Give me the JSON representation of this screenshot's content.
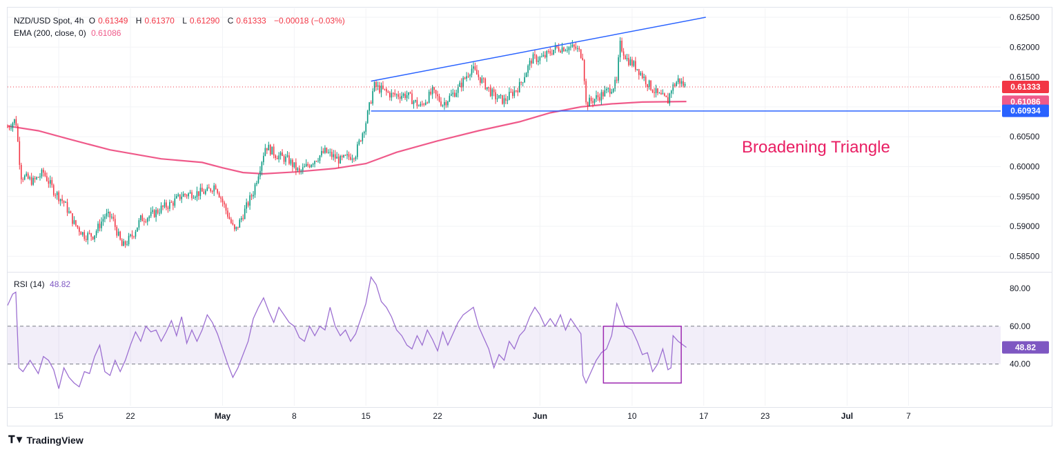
{
  "legend": {
    "symbol": "NZD/USD Spot, 4h",
    "o_label": "O",
    "open": "0.61349",
    "h_label": "H",
    "high": "0.61370",
    "l_label": "L",
    "low": "0.61290",
    "c_label": "C",
    "close": "0.61333",
    "change": "−0.00018 (−0.03%)",
    "ema_label": "EMA (200, close, 0)",
    "ema_value": "0.61086",
    "rsi_label": "RSI (14)",
    "rsi_value": "48.82"
  },
  "annotation": "Broadening Triangle",
  "footer": {
    "logo_text": "TradingView"
  },
  "colors": {
    "up": "#089981",
    "down": "#f23645",
    "ema": "#ef5a8a",
    "trendline": "#2962ff",
    "rsi": "#9c6fd1",
    "rsi_box": "#9c27b0",
    "annotation": "#e91e63"
  },
  "chart_data": [
    {
      "type": "candlestick",
      "title": "NZD/USD Spot, 4h",
      "ylim": [
        0.5825,
        0.6265
      ],
      "y_ticks": [
        "0.62500",
        "0.62000",
        "0.61500",
        "0.61000",
        "0.60500",
        "0.60000",
        "0.59500",
        "0.59000",
        "0.58500"
      ],
      "x_ticks": [
        "15",
        "22",
        "May",
        "8",
        "15",
        "22",
        "Jun",
        "10",
        "17",
        "23",
        "Jul",
        "7"
      ],
      "x_tick_days": [
        15,
        22,
        31,
        38,
        45,
        52,
        62,
        71,
        78,
        84,
        92,
        98
      ],
      "x_range_days": [
        10.0,
        107.0
      ],
      "price_labels": [
        {
          "value": 0.61333,
          "text": "0.61333",
          "color": "#f23645"
        },
        {
          "value": 0.61086,
          "text": "0.61086",
          "color": "#ef5a8a"
        },
        {
          "value": 0.60934,
          "text": "0.60934",
          "color": "#2962ff"
        }
      ],
      "close_path": [
        [
          10.0,
          0.6066
        ],
        [
          10.8,
          0.6079
        ],
        [
          11.3,
          0.5985
        ],
        [
          12.5,
          0.5975
        ],
        [
          13.5,
          0.599
        ],
        [
          14.5,
          0.596
        ],
        [
          15.5,
          0.594
        ],
        [
          16.5,
          0.5905
        ],
        [
          17.5,
          0.5885
        ],
        [
          18.4,
          0.5885
        ],
        [
          19.5,
          0.5918
        ],
        [
          20.2,
          0.5915
        ],
        [
          21.2,
          0.5865
        ],
        [
          22.2,
          0.5885
        ],
        [
          23.0,
          0.5912
        ],
        [
          24.0,
          0.5918
        ],
        [
          25.0,
          0.593
        ],
        [
          26.0,
          0.5938
        ],
        [
          27.0,
          0.5952
        ],
        [
          28.0,
          0.5955
        ],
        [
          29.5,
          0.5958
        ],
        [
          30.3,
          0.597
        ],
        [
          31.5,
          0.592
        ],
        [
          32.2,
          0.589
        ],
        [
          33.0,
          0.592
        ],
        [
          34.0,
          0.5958
        ],
        [
          35.2,
          0.6035
        ],
        [
          36.2,
          0.602
        ],
        [
          37.5,
          0.601
        ],
        [
          38.5,
          0.599
        ],
        [
          40.0,
          0.6012
        ],
        [
          41.0,
          0.6025
        ],
        [
          42.5,
          0.601
        ],
        [
          44.0,
          0.6022
        ],
        [
          45.0,
          0.6075
        ],
        [
          45.8,
          0.6135
        ],
        [
          47.5,
          0.612
        ],
        [
          49.0,
          0.612
        ],
        [
          50.3,
          0.61
        ],
        [
          51.5,
          0.6125
        ],
        [
          52.5,
          0.6105
        ],
        [
          54.0,
          0.613
        ],
        [
          55.3,
          0.6165
        ],
        [
          56.5,
          0.614
        ],
        [
          57.5,
          0.6118
        ],
        [
          58.5,
          0.611
        ],
        [
          60.0,
          0.6135
        ],
        [
          61.2,
          0.618
        ],
        [
          62.3,
          0.6182
        ],
        [
          63.5,
          0.6198
        ],
        [
          64.7,
          0.62
        ],
        [
          65.5,
          0.6198
        ],
        [
          66.2,
          0.6185
        ],
        [
          66.5,
          0.6105
        ],
        [
          67.5,
          0.6115
        ],
        [
          68.5,
          0.6125
        ],
        [
          69.5,
          0.614
        ],
        [
          69.8,
          0.6205
        ],
        [
          70.5,
          0.618
        ],
        [
          71.5,
          0.6165
        ],
        [
          72.5,
          0.614
        ],
        [
          73.5,
          0.612
        ],
        [
          74.5,
          0.611
        ],
        [
          74.8,
          0.613
        ],
        [
          75.5,
          0.6145
        ],
        [
          76.3,
          0.6133
        ]
      ],
      "ema_path": [
        [
          10.0,
          0.6068
        ],
        [
          13.0,
          0.606
        ],
        [
          16.0,
          0.6046
        ],
        [
          20.0,
          0.6028
        ],
        [
          25.0,
          0.6013
        ],
        [
          29.0,
          0.6007
        ],
        [
          31.0,
          0.5998
        ],
        [
          33.0,
          0.599
        ],
        [
          35.0,
          0.5988
        ],
        [
          38.0,
          0.5991
        ],
        [
          42.0,
          0.5997
        ],
        [
          45.0,
          0.6005
        ],
        [
          48.0,
          0.6024
        ],
        [
          52.0,
          0.6043
        ],
        [
          56.0,
          0.606
        ],
        [
          60.0,
          0.6075
        ],
        [
          63.0,
          0.609
        ],
        [
          66.0,
          0.61
        ],
        [
          69.0,
          0.6105
        ],
        [
          72.0,
          0.6108
        ],
        [
          76.3,
          0.6109
        ]
      ],
      "horizontal_line": {
        "y": 0.6093,
        "from_day": 45.5,
        "to_day": 107.0
      },
      "upper_trendline": {
        "from": [
          45.5,
          0.6143
        ],
        "to": [
          78.2,
          0.625
        ]
      },
      "annotation": "Broadening Triangle"
    },
    {
      "type": "line",
      "title": "RSI (14)",
      "ylim": [
        18,
        88
      ],
      "y_ticks": [
        "80.00",
        "60.00",
        "40.00"
      ],
      "band": [
        40,
        60
      ],
      "current": 48.82,
      "highlight_box": {
        "x_days": [
          68.2,
          75.8
        ],
        "y": [
          30,
          60
        ]
      },
      "path": [
        [
          10.0,
          71
        ],
        [
          10.5,
          77
        ],
        [
          10.8,
          78
        ],
        [
          11.1,
          38
        ],
        [
          11.5,
          36
        ],
        [
          12.2,
          42
        ],
        [
          13.0,
          35
        ],
        [
          13.5,
          44
        ],
        [
          14.0,
          42
        ],
        [
          14.5,
          37
        ],
        [
          15.0,
          27
        ],
        [
          15.5,
          38
        ],
        [
          16.0,
          33
        ],
        [
          16.5,
          30
        ],
        [
          17.0,
          28
        ],
        [
          17.5,
          36
        ],
        [
          18.0,
          35
        ],
        [
          18.5,
          44
        ],
        [
          19.0,
          50
        ],
        [
          19.5,
          36
        ],
        [
          20.0,
          34
        ],
        [
          20.5,
          42
        ],
        [
          21.0,
          36
        ],
        [
          21.5,
          42
        ],
        [
          22.0,
          50
        ],
        [
          22.5,
          57
        ],
        [
          23.0,
          52
        ],
        [
          23.5,
          60
        ],
        [
          24.0,
          57
        ],
        [
          24.5,
          58
        ],
        [
          25.0,
          52
        ],
        [
          25.5,
          57
        ],
        [
          26.0,
          63
        ],
        [
          26.5,
          55
        ],
        [
          27.0,
          65
        ],
        [
          27.5,
          51
        ],
        [
          28.0,
          58
        ],
        [
          28.5,
          52
        ],
        [
          29.0,
          58
        ],
        [
          29.5,
          66
        ],
        [
          30.0,
          62
        ],
        [
          30.5,
          56
        ],
        [
          31.0,
          48
        ],
        [
          31.5,
          40
        ],
        [
          32.0,
          33
        ],
        [
          32.5,
          38
        ],
        [
          33.0,
          45
        ],
        [
          33.5,
          52
        ],
        [
          34.0,
          64
        ],
        [
          34.5,
          70
        ],
        [
          35.0,
          75
        ],
        [
          35.5,
          68
        ],
        [
          36.0,
          62
        ],
        [
          36.5,
          70
        ],
        [
          37.0,
          66
        ],
        [
          37.5,
          62
        ],
        [
          38.0,
          60
        ],
        [
          38.5,
          54
        ],
        [
          39.0,
          52
        ],
        [
          39.5,
          60
        ],
        [
          40.0,
          55
        ],
        [
          40.5,
          60
        ],
        [
          41.0,
          58
        ],
        [
          41.5,
          70
        ],
        [
          42.0,
          60
        ],
        [
          42.5,
          55
        ],
        [
          43.0,
          58
        ],
        [
          43.5,
          52
        ],
        [
          44.0,
          56
        ],
        [
          44.5,
          64
        ],
        [
          45.0,
          72
        ],
        [
          45.5,
          86
        ],
        [
          46.0,
          82
        ],
        [
          46.5,
          73
        ],
        [
          47.0,
          70
        ],
        [
          47.5,
          65
        ],
        [
          48.0,
          58
        ],
        [
          48.5,
          55
        ],
        [
          49.0,
          50
        ],
        [
          49.5,
          48
        ],
        [
          50.0,
          55
        ],
        [
          50.5,
          50
        ],
        [
          51.0,
          58
        ],
        [
          51.5,
          53
        ],
        [
          52.0,
          47
        ],
        [
          52.5,
          57
        ],
        [
          53.0,
          50
        ],
        [
          53.5,
          56
        ],
        [
          54.0,
          62
        ],
        [
          54.5,
          66
        ],
        [
          55.0,
          68
        ],
        [
          55.5,
          70
        ],
        [
          56.0,
          60
        ],
        [
          56.5,
          54
        ],
        [
          57.0,
          48
        ],
        [
          57.5,
          38
        ],
        [
          58.0,
          45
        ],
        [
          58.5,
          42
        ],
        [
          59.0,
          52
        ],
        [
          59.5,
          48
        ],
        [
          60.0,
          55
        ],
        [
          60.5,
          58
        ],
        [
          61.0,
          65
        ],
        [
          61.5,
          70
        ],
        [
          62.0,
          66
        ],
        [
          62.5,
          60
        ],
        [
          63.0,
          64
        ],
        [
          63.5,
          60
        ],
        [
          64.0,
          66
        ],
        [
          64.5,
          58
        ],
        [
          65.0,
          64
        ],
        [
          65.5,
          60
        ],
        [
          66.0,
          56
        ],
        [
          66.2,
          34
        ],
        [
          66.5,
          30
        ],
        [
          67.0,
          36
        ],
        [
          67.5,
          42
        ],
        [
          68.0,
          46
        ],
        [
          68.5,
          48
        ],
        [
          69.0,
          55
        ],
        [
          69.5,
          72
        ],
        [
          69.8,
          68
        ],
        [
          70.3,
          60
        ],
        [
          71.0,
          58
        ],
        [
          71.5,
          52
        ],
        [
          72.0,
          45
        ],
        [
          72.5,
          46
        ],
        [
          73.0,
          36
        ],
        [
          73.5,
          40
        ],
        [
          74.0,
          48
        ],
        [
          74.5,
          37
        ],
        [
          74.8,
          38
        ],
        [
          75.0,
          55
        ],
        [
          75.5,
          52
        ],
        [
          76.3,
          48.82
        ]
      ]
    }
  ]
}
